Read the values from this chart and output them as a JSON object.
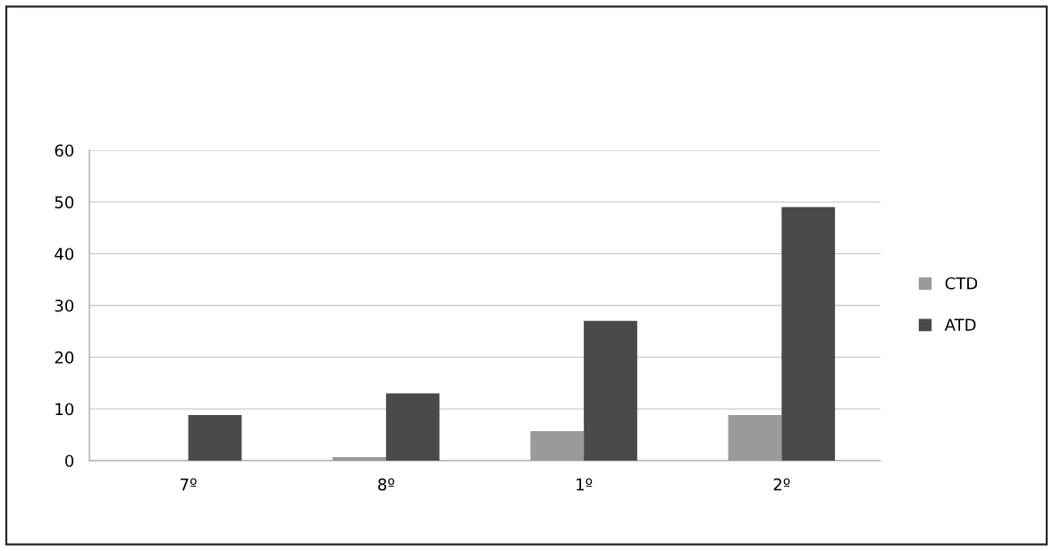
{
  "chart_data": {
    "type": "bar",
    "categories": [
      "7º",
      "8º",
      "1º",
      "2º"
    ],
    "series": [
      {
        "name": "CTD",
        "color": "#9a9a9a",
        "values": [
          0,
          0.7,
          5.7,
          8.8
        ]
      },
      {
        "name": "ATD",
        "color": "#4a4a4a",
        "values": [
          8.8,
          13,
          27,
          49
        ]
      }
    ],
    "ylim": [
      0,
      60
    ],
    "yticks": [
      0,
      10,
      20,
      30,
      40,
      50,
      60
    ],
    "grid": "y",
    "legend": "right"
  }
}
